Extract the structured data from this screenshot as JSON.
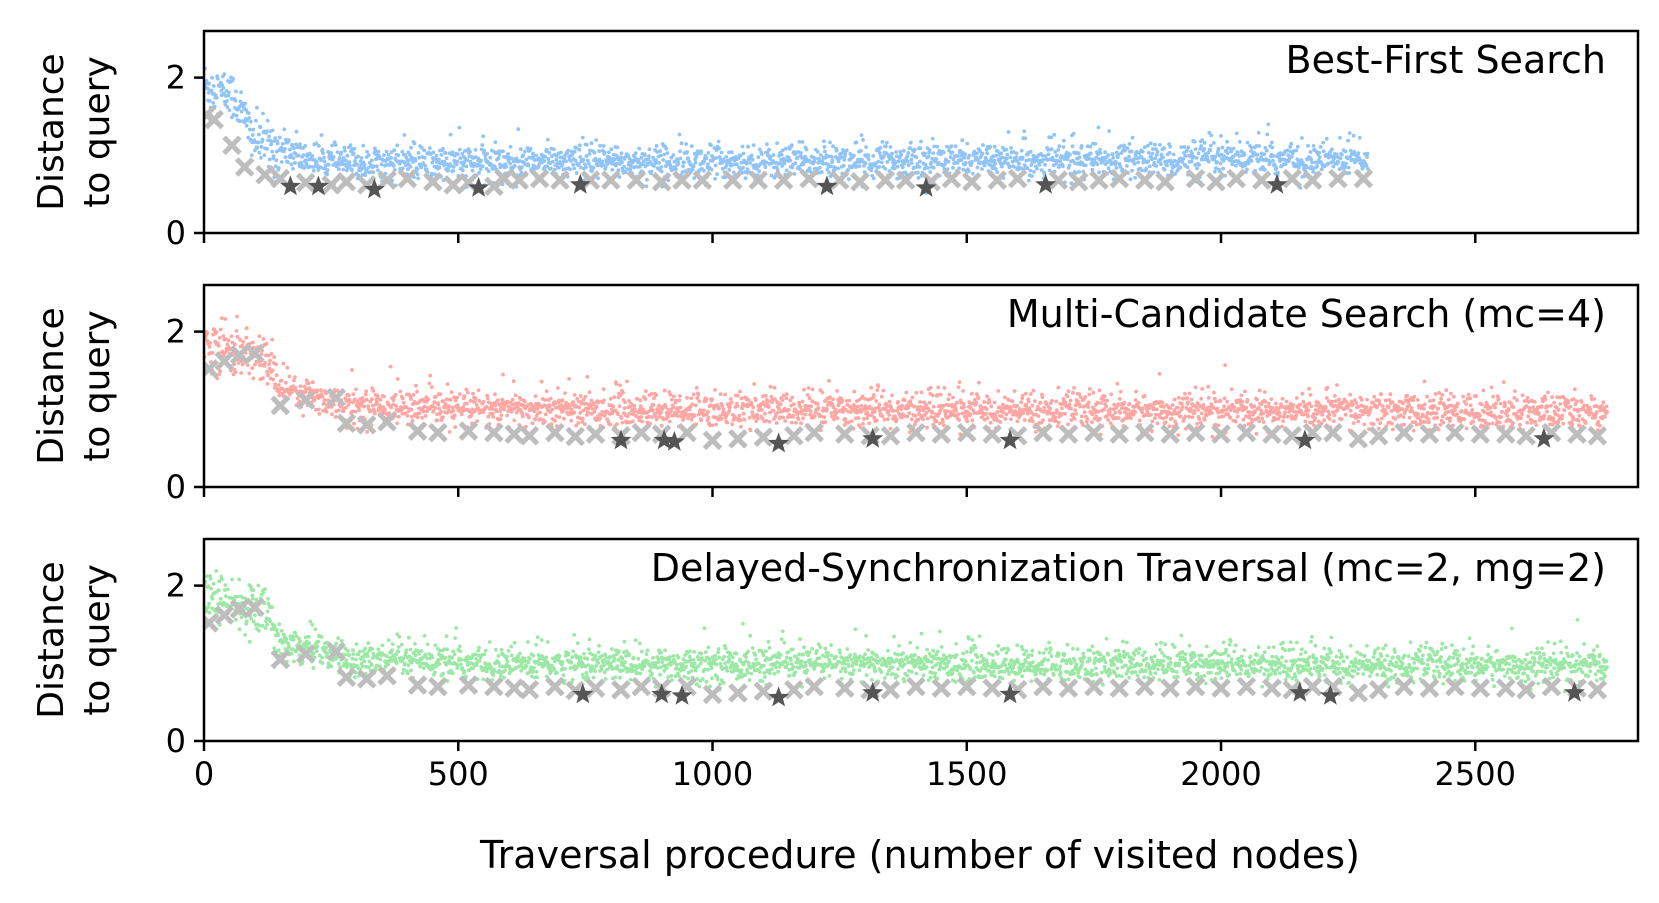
{
  "chart_data": {
    "type": "scatter",
    "xlabel": "Traversal procedure (number of visited nodes)",
    "ylabel_line1": "Distance",
    "ylabel_line2": "to query",
    "xlim": [
      0,
      2820
    ],
    "ylim": [
      0,
      2.6
    ],
    "xticks": [
      0,
      500,
      1000,
      1500,
      2000,
      2500
    ],
    "yticks": [
      0,
      2
    ],
    "marker_colors": {
      "cross": "#bdbdbd",
      "star": "#555555"
    },
    "panels": [
      {
        "title": "Best-First Search",
        "color": "#90c4f8",
        "n_points": 2290,
        "noise_profile": [
          [
            0,
            1.9
          ],
          [
            60,
            1.75
          ],
          [
            100,
            1.2
          ],
          [
            200,
            0.95
          ],
          [
            280,
            0.9
          ],
          [
            2290,
            0.95
          ]
        ],
        "crosses": [
          [
            5,
            1.52
          ],
          [
            20,
            1.46
          ],
          [
            55,
            1.13
          ],
          [
            80,
            0.85
          ],
          [
            120,
            0.75
          ],
          [
            150,
            0.7
          ],
          [
            200,
            0.65
          ],
          [
            250,
            0.62
          ],
          [
            280,
            0.66
          ],
          [
            320,
            0.62
          ],
          [
            360,
            0.68
          ],
          [
            400,
            0.7
          ],
          [
            450,
            0.66
          ],
          [
            490,
            0.62
          ],
          [
            520,
            0.65
          ],
          [
            570,
            0.6
          ],
          [
            590,
            0.7
          ],
          [
            620,
            0.68
          ],
          [
            660,
            0.7
          ],
          [
            700,
            0.68
          ],
          [
            760,
            0.68
          ],
          [
            800,
            0.68
          ],
          [
            850,
            0.68
          ],
          [
            900,
            0.66
          ],
          [
            940,
            0.68
          ],
          [
            980,
            0.68
          ],
          [
            1040,
            0.68
          ],
          [
            1090,
            0.68
          ],
          [
            1140,
            0.68
          ],
          [
            1190,
            0.7
          ],
          [
            1250,
            0.68
          ],
          [
            1290,
            0.66
          ],
          [
            1340,
            0.68
          ],
          [
            1380,
            0.68
          ],
          [
            1430,
            0.66
          ],
          [
            1470,
            0.7
          ],
          [
            1510,
            0.66
          ],
          [
            1560,
            0.68
          ],
          [
            1600,
            0.7
          ],
          [
            1680,
            0.68
          ],
          [
            1720,
            0.66
          ],
          [
            1760,
            0.68
          ],
          [
            1800,
            0.7
          ],
          [
            1850,
            0.68
          ],
          [
            1890,
            0.66
          ],
          [
            1950,
            0.7
          ],
          [
            1990,
            0.66
          ],
          [
            2030,
            0.7
          ],
          [
            2080,
            0.68
          ],
          [
            2140,
            0.7
          ],
          [
            2180,
            0.68
          ],
          [
            2230,
            0.7
          ],
          [
            2280,
            0.7
          ]
        ],
        "stars": [
          [
            170,
            0.6
          ],
          [
            225,
            0.6
          ],
          [
            335,
            0.56
          ],
          [
            540,
            0.58
          ],
          [
            740,
            0.62
          ],
          [
            1225,
            0.6
          ],
          [
            1420,
            0.58
          ],
          [
            1655,
            0.62
          ],
          [
            2110,
            0.62
          ]
        ]
      },
      {
        "title": "Multi-Candidate Search (mc=4)",
        "color": "#ffa6a3",
        "n_points": 2760,
        "noise_profile": [
          [
            0,
            1.85
          ],
          [
            120,
            1.65
          ],
          [
            150,
            1.3
          ],
          [
            280,
            1.05
          ],
          [
            500,
            1.0
          ],
          [
            2760,
            0.97
          ]
        ],
        "crosses": [
          [
            10,
            1.52
          ],
          [
            40,
            1.62
          ],
          [
            70,
            1.7
          ],
          [
            100,
            1.72
          ],
          [
            150,
            1.05
          ],
          [
            200,
            1.12
          ],
          [
            260,
            1.15
          ],
          [
            280,
            0.82
          ],
          [
            320,
            0.8
          ],
          [
            360,
            0.84
          ],
          [
            420,
            0.72
          ],
          [
            460,
            0.7
          ],
          [
            520,
            0.72
          ],
          [
            570,
            0.7
          ],
          [
            610,
            0.68
          ],
          [
            640,
            0.66
          ],
          [
            690,
            0.7
          ],
          [
            730,
            0.65
          ],
          [
            770,
            0.68
          ],
          [
            820,
            0.66
          ],
          [
            860,
            0.7
          ],
          [
            900,
            0.68
          ],
          [
            950,
            0.7
          ],
          [
            1000,
            0.6
          ],
          [
            1050,
            0.62
          ],
          [
            1100,
            0.64
          ],
          [
            1160,
            0.66
          ],
          [
            1200,
            0.7
          ],
          [
            1260,
            0.68
          ],
          [
            1310,
            0.66
          ],
          [
            1350,
            0.66
          ],
          [
            1400,
            0.7
          ],
          [
            1450,
            0.68
          ],
          [
            1500,
            0.7
          ],
          [
            1550,
            0.68
          ],
          [
            1600,
            0.66
          ],
          [
            1650,
            0.7
          ],
          [
            1700,
            0.68
          ],
          [
            1750,
            0.7
          ],
          [
            1800,
            0.68
          ],
          [
            1850,
            0.7
          ],
          [
            1900,
            0.68
          ],
          [
            1950,
            0.7
          ],
          [
            2000,
            0.68
          ],
          [
            2050,
            0.7
          ],
          [
            2100,
            0.68
          ],
          [
            2140,
            0.66
          ],
          [
            2180,
            0.7
          ],
          [
            2220,
            0.7
          ],
          [
            2270,
            0.62
          ],
          [
            2310,
            0.66
          ],
          [
            2360,
            0.7
          ],
          [
            2410,
            0.68
          ],
          [
            2460,
            0.7
          ],
          [
            2510,
            0.68
          ],
          [
            2560,
            0.68
          ],
          [
            2600,
            0.66
          ],
          [
            2650,
            0.7
          ],
          [
            2700,
            0.68
          ],
          [
            2740,
            0.66
          ]
        ],
        "stars": [
          [
            820,
            0.6
          ],
          [
            905,
            0.6
          ],
          [
            925,
            0.58
          ],
          [
            1130,
            0.56
          ],
          [
            1315,
            0.62
          ],
          [
            1585,
            0.6
          ],
          [
            2165,
            0.6
          ],
          [
            2635,
            0.62
          ]
        ]
      },
      {
        "title": "Delayed-Synchronization Traversal (mc=2, mg=2)",
        "color": "#9be8a5",
        "n_points": 2760,
        "noise_profile": [
          [
            0,
            1.85
          ],
          [
            120,
            1.65
          ],
          [
            150,
            1.3
          ],
          [
            280,
            1.05
          ],
          [
            500,
            1.0
          ],
          [
            2760,
            0.97
          ]
        ],
        "crosses": [
          [
            10,
            1.52
          ],
          [
            40,
            1.62
          ],
          [
            70,
            1.7
          ],
          [
            100,
            1.72
          ],
          [
            150,
            1.05
          ],
          [
            200,
            1.12
          ],
          [
            260,
            1.15
          ],
          [
            280,
            0.82
          ],
          [
            320,
            0.8
          ],
          [
            360,
            0.84
          ],
          [
            420,
            0.72
          ],
          [
            460,
            0.7
          ],
          [
            520,
            0.72
          ],
          [
            570,
            0.7
          ],
          [
            610,
            0.68
          ],
          [
            640,
            0.66
          ],
          [
            690,
            0.7
          ],
          [
            730,
            0.65
          ],
          [
            770,
            0.68
          ],
          [
            820,
            0.66
          ],
          [
            860,
            0.7
          ],
          [
            900,
            0.68
          ],
          [
            950,
            0.7
          ],
          [
            1000,
            0.6
          ],
          [
            1050,
            0.62
          ],
          [
            1100,
            0.64
          ],
          [
            1160,
            0.66
          ],
          [
            1200,
            0.7
          ],
          [
            1260,
            0.68
          ],
          [
            1310,
            0.66
          ],
          [
            1350,
            0.66
          ],
          [
            1400,
            0.7
          ],
          [
            1450,
            0.68
          ],
          [
            1500,
            0.7
          ],
          [
            1550,
            0.68
          ],
          [
            1600,
            0.66
          ],
          [
            1650,
            0.7
          ],
          [
            1700,
            0.68
          ],
          [
            1750,
            0.7
          ],
          [
            1800,
            0.68
          ],
          [
            1850,
            0.7
          ],
          [
            1900,
            0.68
          ],
          [
            1950,
            0.7
          ],
          [
            2000,
            0.68
          ],
          [
            2050,
            0.7
          ],
          [
            2100,
            0.68
          ],
          [
            2140,
            0.66
          ],
          [
            2180,
            0.7
          ],
          [
            2220,
            0.7
          ],
          [
            2270,
            0.62
          ],
          [
            2310,
            0.66
          ],
          [
            2360,
            0.7
          ],
          [
            2410,
            0.68
          ],
          [
            2460,
            0.7
          ],
          [
            2510,
            0.68
          ],
          [
            2560,
            0.68
          ],
          [
            2600,
            0.66
          ],
          [
            2650,
            0.7
          ],
          [
            2700,
            0.68
          ],
          [
            2740,
            0.66
          ]
        ],
        "stars": [
          [
            745,
            0.6
          ],
          [
            900,
            0.6
          ],
          [
            940,
            0.58
          ],
          [
            1130,
            0.56
          ],
          [
            1315,
            0.62
          ],
          [
            1585,
            0.6
          ],
          [
            2155,
            0.62
          ],
          [
            2215,
            0.58
          ],
          [
            2695,
            0.62
          ]
        ]
      }
    ]
  }
}
